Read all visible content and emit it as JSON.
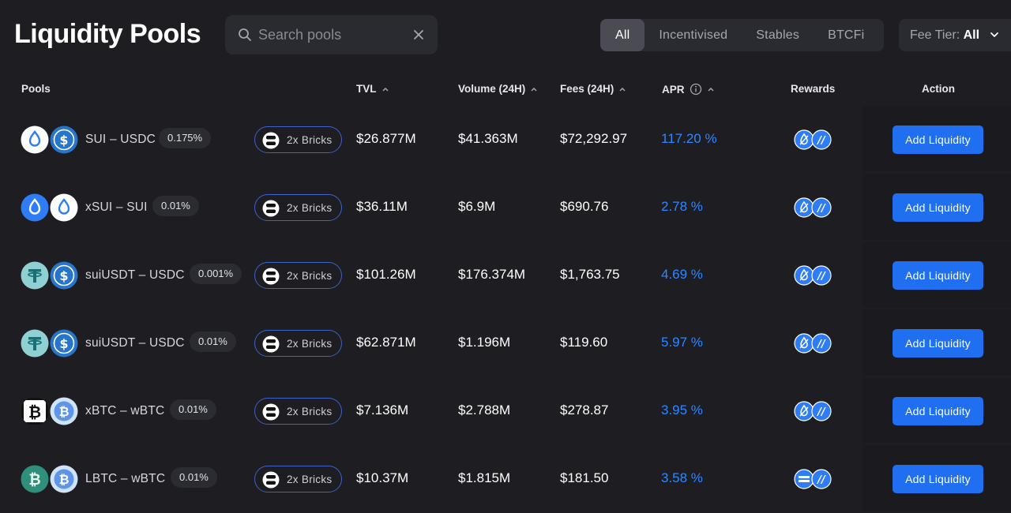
{
  "page": {
    "title": "Liquidity Pools",
    "search": {
      "placeholder": "Search pools",
      "value": ""
    },
    "tabs": [
      {
        "label": "All",
        "active": true
      },
      {
        "label": "Incentivised",
        "active": false
      },
      {
        "label": "Stables",
        "active": false
      },
      {
        "label": "BTCFi",
        "active": false
      }
    ],
    "fee_tier": {
      "label": "Fee Tier:",
      "value": "All"
    }
  },
  "table": {
    "headers": {
      "pools": "Pools",
      "tvl": "TVL",
      "volume": "Volume (24H)",
      "fees": "Fees (24H)",
      "apr": "APR",
      "rewards": "Rewards",
      "action": "Action"
    },
    "rows": [
      {
        "pair": "SUI – USDC",
        "fee": "0.175%",
        "bricks": "2x Bricks",
        "tvl": "$26.877M",
        "volume": "$41.363M",
        "fees": "$72,292.97",
        "apr": "117.20 %",
        "action": "Add Liquidity",
        "token1": "sui-icon",
        "token2": "usdc-icon",
        "reward_icons": "sui-reward-icon"
      },
      {
        "pair": "xSUI – SUI",
        "fee": "0.01%",
        "bricks": "2x Bricks",
        "tvl": "$36.11M",
        "volume": "$6.9M",
        "fees": "$690.76",
        "apr": "2.78 %",
        "action": "Add Liquidity",
        "token1": "xsui-icon",
        "token2": "sui-icon",
        "reward_icons": "sui-reward-icon"
      },
      {
        "pair": "suiUSDT – USDC",
        "fee": "0.001%",
        "bricks": "2x Bricks",
        "tvl": "$101.26M",
        "volume": "$176.374M",
        "fees": "$1,763.75",
        "apr": "4.69 %",
        "action": "Add Liquidity",
        "token1": "usdt-icon",
        "token2": "usdc-icon",
        "reward_icons": "sui-reward-icon"
      },
      {
        "pair": "suiUSDT – USDC",
        "fee": "0.01%",
        "bricks": "2x Bricks",
        "tvl": "$62.871M",
        "volume": "$1.196M",
        "fees": "$119.60",
        "apr": "5.97 %",
        "action": "Add Liquidity",
        "token1": "usdt-icon",
        "token2": "usdc-icon",
        "reward_icons": "sui-reward-icon"
      },
      {
        "pair": "xBTC – wBTC",
        "fee": "0.01%",
        "bricks": "2x Bricks",
        "tvl": "$7.136M",
        "volume": "$2.788M",
        "fees": "$278.87",
        "apr": "3.95 %",
        "action": "Add Liquidity",
        "token1": "xbtc-icon",
        "token2": "wbtc-icon",
        "reward_icons": "sui-reward-icon"
      },
      {
        "pair": "LBTC – wBTC",
        "fee": "0.01%",
        "bricks": "2x Bricks",
        "tvl": "$10.37M",
        "volume": "$1.815M",
        "fees": "$181.50",
        "apr": "3.58 %",
        "action": "Add Liquidity",
        "token1": "lbtc-icon",
        "token2": "wbtc-icon",
        "reward_icons": "lbtc-reward-icon"
      }
    ]
  },
  "colors": {
    "background": "#1d1d22",
    "accent_blue": "#1f6ff0",
    "apr_blue": "#2f87ff",
    "usdt_teal": "#8fd0d3"
  }
}
